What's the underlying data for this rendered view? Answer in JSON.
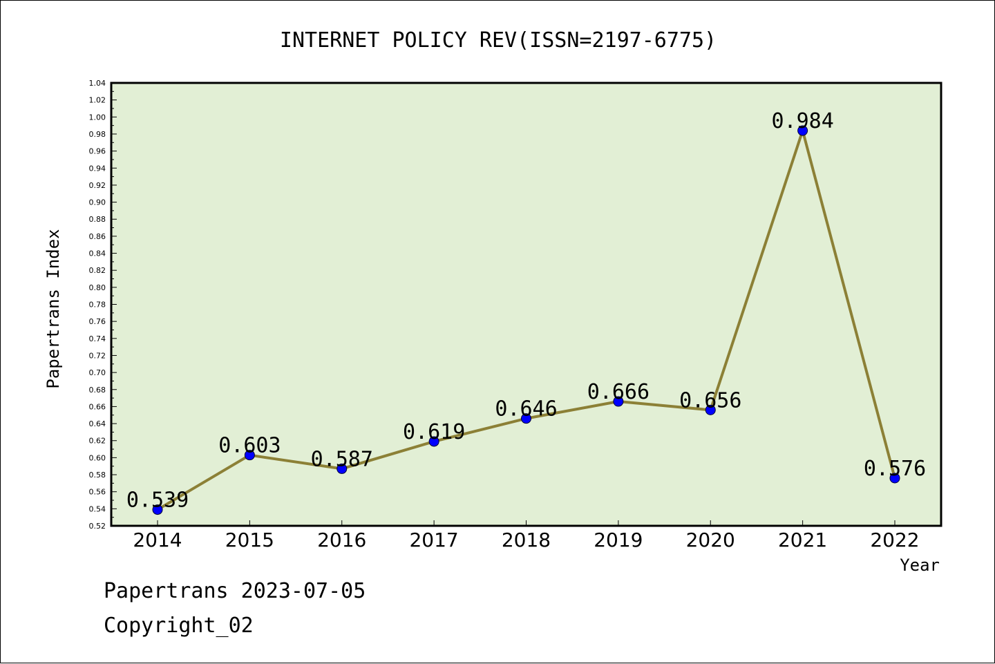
{
  "chart_data": {
    "type": "line",
    "title": "INTERNET POLICY REV(ISSN=2197-6775)",
    "xlabel": "Year",
    "ylabel": "Papertrans Index",
    "categories": [
      "2014",
      "2015",
      "2016",
      "2017",
      "2018",
      "2019",
      "2020",
      "2021",
      "2022"
    ],
    "series": [
      {
        "values": [
          0.539,
          0.603,
          0.587,
          0.619,
          0.646,
          0.666,
          0.656,
          0.984,
          0.576
        ],
        "data_labels": [
          "0.539",
          "0.603",
          "0.587",
          "0.619",
          "0.646",
          "0.666",
          "0.656",
          "0.984",
          "0.576"
        ]
      }
    ],
    "ylim": [
      0.52,
      1.04
    ],
    "y_ticks": [
      "0.52",
      "0.54",
      "0.56",
      "0.58",
      "0.60",
      "0.62",
      "0.64",
      "0.66",
      "0.68",
      "0.70",
      "0.72",
      "0.74",
      "0.76",
      "0.78",
      "0.80",
      "0.82",
      "0.84",
      "0.86",
      "0.88",
      "0.90",
      "0.92",
      "0.94",
      "0.96",
      "0.98",
      "1.00",
      "1.02",
      "1.04"
    ],
    "grid": false,
    "legend": "none",
    "colors": {
      "plot_background": "#e2efd5",
      "line": "#8c8036",
      "marker": "#0000ff"
    }
  },
  "footer": {
    "line1": "Papertrans 2023-07-05",
    "line2": "Copyright_02"
  }
}
